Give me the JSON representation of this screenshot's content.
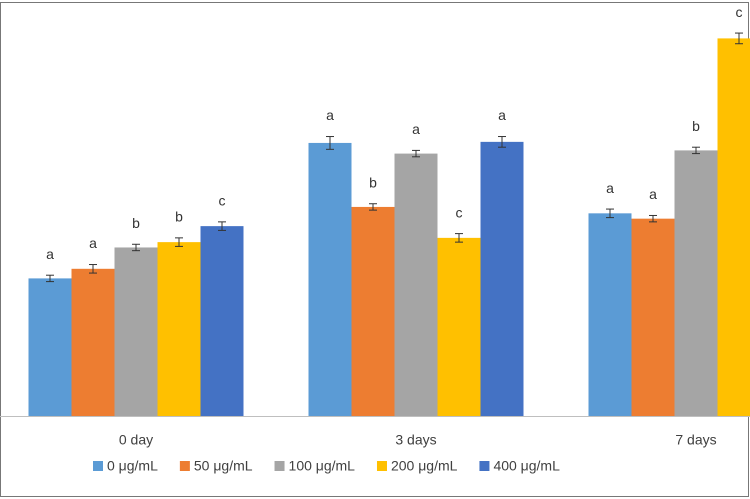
{
  "chart_data": {
    "type": "bar",
    "categories": [
      "0 day",
      "3 days",
      "7 days"
    ],
    "ylim": [
      0,
      360
    ],
    "series": [
      {
        "name": "0 μg/mL",
        "color": "#5b9bd5",
        "values": [
          129,
          256,
          190
        ],
        "errors": [
          3,
          6,
          4
        ],
        "letters": [
          "a",
          "a",
          "a"
        ]
      },
      {
        "name": "50 μg/mL",
        "color": "#ed7d31",
        "values": [
          138,
          196,
          185
        ],
        "errors": [
          4,
          3,
          3
        ],
        "letters": [
          "a",
          "b",
          "a"
        ]
      },
      {
        "name": "100 μg/mL",
        "color": "#a5a5a5",
        "values": [
          158,
          246,
          249
        ],
        "errors": [
          3,
          3,
          3
        ],
        "letters": [
          "b",
          "a",
          "b"
        ]
      },
      {
        "name": "200 μg/mL",
        "color": "#ffc000",
        "values": [
          163,
          167,
          354
        ],
        "errors": [
          4,
          4,
          5
        ],
        "letters": [
          "b",
          "c",
          "c"
        ]
      },
      {
        "name": "400 μg/mL",
        "color": "#4472c4",
        "values": [
          178,
          257,
          null
        ],
        "errors": [
          4,
          5,
          null
        ],
        "letters": [
          "c",
          "a",
          null
        ]
      }
    ]
  }
}
